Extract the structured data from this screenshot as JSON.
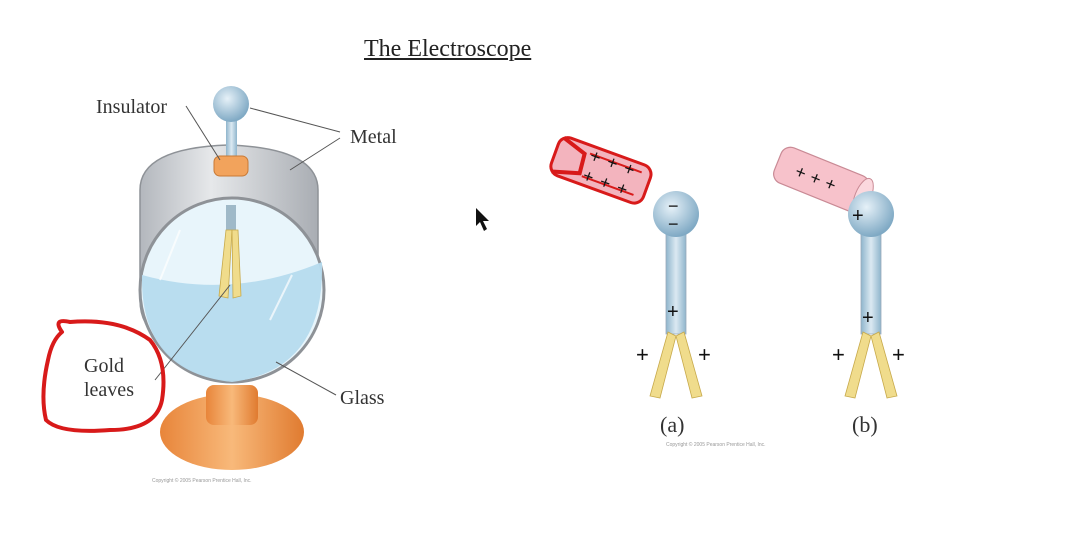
{
  "title": "The Electroscope",
  "left_diagram": {
    "labels": {
      "insulator": "Insulator",
      "metal": "Metal",
      "gold_line1": "Gold",
      "gold_line2": "leaves",
      "glass": "Glass"
    },
    "copyright": "Copyright © 2005 Pearson Prentice Hall, Inc."
  },
  "right_diagram": {
    "panel_a": {
      "caption": "(a)",
      "rod_charges": [
        "+",
        "+",
        "+",
        "+",
        "+",
        "+"
      ],
      "ball_charges": [
        "−",
        "−"
      ],
      "stem_charge": "+",
      "leaf_left": "+",
      "leaf_right": "+"
    },
    "panel_b": {
      "caption": "(b)",
      "rod_charges": [
        "+",
        "+",
        "+"
      ],
      "ball_charge": "+",
      "stem_charge": "+",
      "leaf_left": "+",
      "leaf_right": "+"
    },
    "copyright": "Copyright © 2005 Pearson Prentice Hall, Inc."
  },
  "colors": {
    "metal": "#c9ccd1",
    "glass": "#c4e4f3",
    "gold_leaf": "#f0dc8c",
    "insulator": "#f2a35c",
    "base": "#ee9645",
    "rod_a": "#f3b4be",
    "rod_b": "#f7c2cb",
    "annotation": "#d81a1a",
    "ball": "#a8c9dd"
  }
}
